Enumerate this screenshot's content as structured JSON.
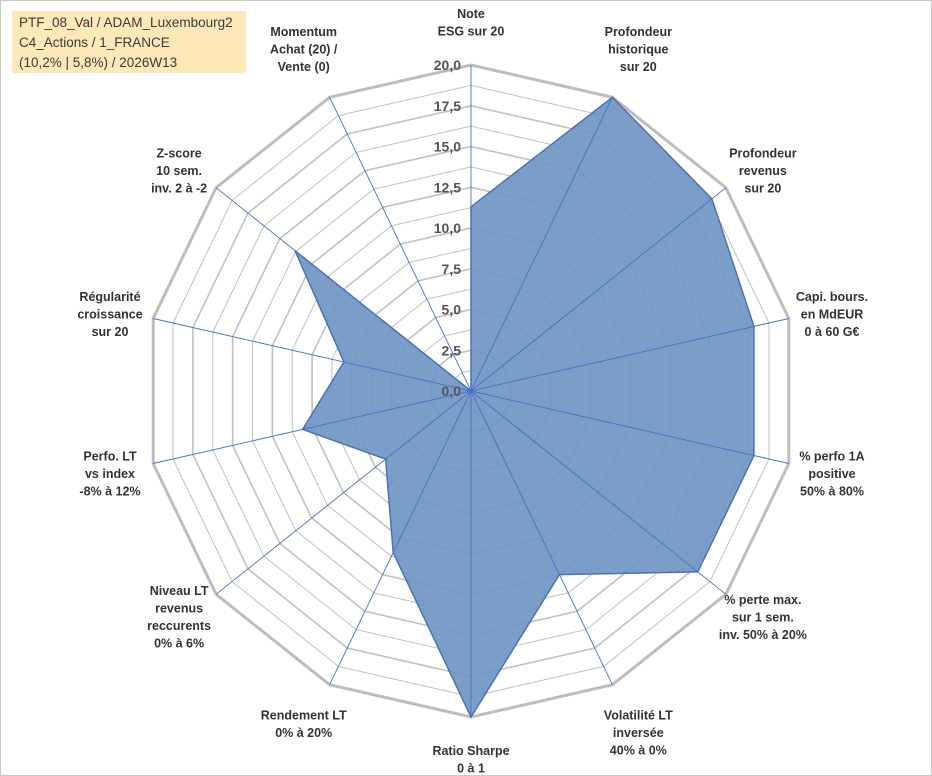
{
  "info": {
    "line1": "PTF_08_Val / ADAM_Luxembourg2",
    "line2": "C4_Actions / 1_FRANCE",
    "line3": "(10,2% | 5,8%) / 2026W13"
  },
  "chart_data": {
    "type": "radar",
    "rmax": 20,
    "grid_step": 1.25,
    "ticks": [
      "0,0",
      "2,5",
      "5,0",
      "7,5",
      "10,0",
      "12,5",
      "15,0",
      "17,5",
      "20,0"
    ],
    "axes": [
      [
        "Note",
        "ESG sur 20"
      ],
      [
        "Profondeur",
        "historique",
        "sur 20"
      ],
      [
        "Profondeur",
        "revenus",
        "sur 20"
      ],
      [
        "Capi. bours.",
        "en MdEUR",
        "0 à 60 G€"
      ],
      [
        "% perfo 1A",
        "positive",
        "50% à 80%"
      ],
      [
        "% perte max.",
        "sur 1 sem.",
        "inv. 50% à 20%"
      ],
      [
        "Volatilité LT",
        "inversée",
        "40% à 0%"
      ],
      [
        "Ratio Sharpe",
        "0 à 1"
      ],
      [
        "Rendement LT",
        "0% à 20%"
      ],
      [
        "Niveau LT",
        "revenus",
        "reccurents",
        "0% à 6%"
      ],
      [
        "Perfo. LT",
        "vs index",
        "-8% à 12%"
      ],
      [
        "Régularité",
        "croissance",
        "sur 20"
      ],
      [
        "Z-score",
        "10 sem.",
        "inv. 2 à -2"
      ],
      [
        "Momentum",
        "Achat (20) /",
        "Vente (0)"
      ]
    ],
    "values": [
      11.3,
      20,
      18.9,
      17.8,
      17.8,
      17.8,
      12.5,
      20,
      11.0,
      6.7,
      10.6,
      8.0,
      13.8,
      0
    ],
    "fill_color": "#7096c4",
    "stroke_color": "#4a73b3",
    "grid_color": "#c0c0c0",
    "spoke_color": "#4472c4"
  }
}
